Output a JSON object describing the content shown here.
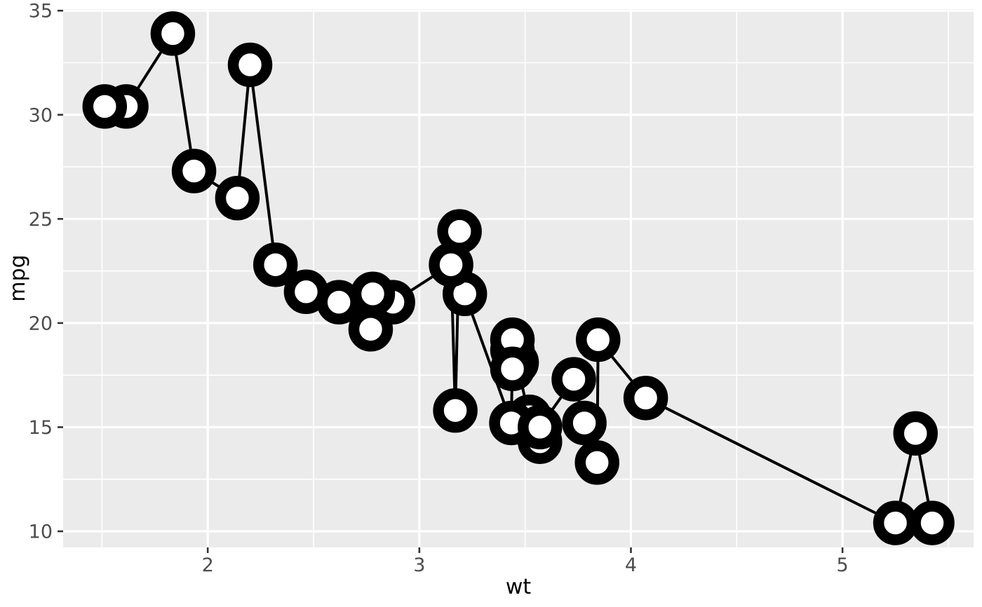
{
  "chart_data": {
    "type": "scatter",
    "subtype": "line+points",
    "title": "",
    "xlabel": "wt",
    "ylabel": "mpg",
    "xlim": [
      1.3165,
      5.6195
    ],
    "ylim": [
      9.225,
      35.075
    ],
    "x_ticks": [
      2,
      3,
      4,
      5
    ],
    "x_minor_ticks": [
      1.5,
      2.5,
      3.5,
      4.5,
      5.5
    ],
    "y_ticks": [
      10,
      15,
      20,
      25,
      30,
      35
    ],
    "y_minor_ticks": [
      12.5,
      17.5,
      22.5,
      27.5,
      32.5
    ],
    "grid": true,
    "legend_position": "none",
    "line_order": "sorted_by_x",
    "points": [
      {
        "wt": 2.62,
        "mpg": 21.0
      },
      {
        "wt": 2.875,
        "mpg": 21.0
      },
      {
        "wt": 2.32,
        "mpg": 22.8
      },
      {
        "wt": 3.215,
        "mpg": 21.4
      },
      {
        "wt": 3.44,
        "mpg": 18.7
      },
      {
        "wt": 3.46,
        "mpg": 18.1
      },
      {
        "wt": 3.57,
        "mpg": 14.3
      },
      {
        "wt": 3.19,
        "mpg": 24.4
      },
      {
        "wt": 3.15,
        "mpg": 22.8
      },
      {
        "wt": 3.44,
        "mpg": 19.2
      },
      {
        "wt": 3.44,
        "mpg": 17.8
      },
      {
        "wt": 4.07,
        "mpg": 16.4
      },
      {
        "wt": 3.73,
        "mpg": 17.3
      },
      {
        "wt": 3.78,
        "mpg": 15.2
      },
      {
        "wt": 5.25,
        "mpg": 10.4
      },
      {
        "wt": 5.424,
        "mpg": 10.4
      },
      {
        "wt": 5.345,
        "mpg": 14.7
      },
      {
        "wt": 2.2,
        "mpg": 32.4
      },
      {
        "wt": 1.615,
        "mpg": 30.4
      },
      {
        "wt": 1.835,
        "mpg": 33.9
      },
      {
        "wt": 2.465,
        "mpg": 21.5
      },
      {
        "wt": 3.52,
        "mpg": 15.5
      },
      {
        "wt": 3.435,
        "mpg": 15.2
      },
      {
        "wt": 3.84,
        "mpg": 13.3
      },
      {
        "wt": 3.845,
        "mpg": 19.2
      },
      {
        "wt": 1.935,
        "mpg": 27.3
      },
      {
        "wt": 2.14,
        "mpg": 26.0
      },
      {
        "wt": 1.513,
        "mpg": 30.4
      },
      {
        "wt": 3.17,
        "mpg": 15.8
      },
      {
        "wt": 2.77,
        "mpg": 19.7
      },
      {
        "wt": 3.57,
        "mpg": 15.0
      },
      {
        "wt": 2.78,
        "mpg": 21.4
      }
    ],
    "colors": {
      "panel_background": "#EBEBEB",
      "grid_line": "#FFFFFF",
      "line": "#000000",
      "point_stroke": "#000000",
      "point_fill": "#FFFFFF",
      "tick_mark": "#333333",
      "tick_label": "#4D4D4D",
      "axis_title": "#000000",
      "figure_background": "#FFFFFF"
    }
  }
}
